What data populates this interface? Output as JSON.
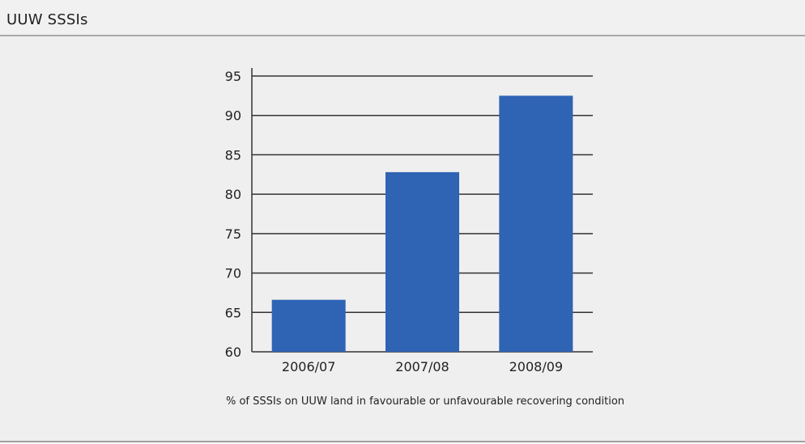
{
  "header": {
    "title": "UUW SSSIs"
  },
  "caption": "% of SSSIs on UUW land in favourable or unfavourable recovering condition",
  "chart_data": {
    "type": "bar",
    "categories": [
      "2006/07",
      "2007/08",
      "2008/09"
    ],
    "values": [
      66.6,
      82.8,
      92.5
    ],
    "ylim": [
      60,
      95
    ],
    "yticks": [
      60,
      65,
      70,
      75,
      80,
      85,
      90,
      95
    ],
    "grid": true,
    "bar_color": "#2f63b4"
  }
}
